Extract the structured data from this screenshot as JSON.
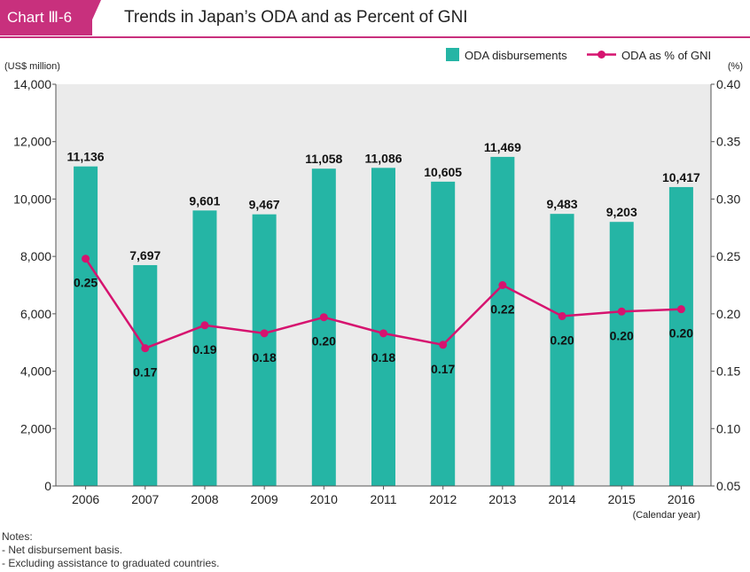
{
  "header": {
    "chart_label": "Chart Ⅲ-6",
    "title": "Trends in Japan’s ODA and as Percent of GNI"
  },
  "notes": {
    "heading": "Notes:",
    "lines": [
      "-  Net disbursement basis.",
      "-  Excluding assistance to graduated countries."
    ]
  },
  "colors": {
    "accent": "#c8307d",
    "bar": "#25b5a5",
    "line": "#d6136f",
    "plot_bg": "#ebebeb"
  },
  "chart_data": {
    "type": "bar",
    "title": "Trends in Japan’s ODA and as Percent of GNI",
    "categories": [
      "2006",
      "2007",
      "2008",
      "2009",
      "2010",
      "2011",
      "2012",
      "2013",
      "2014",
      "2015",
      "2016"
    ],
    "xlabel": "(Calendar year)",
    "ylabel": "(US$ million)",
    "y2label": "(%)",
    "ylim": [
      0,
      14000
    ],
    "y2lim": [
      0.05,
      0.4
    ],
    "y_ticks": [
      "0",
      "2,000",
      "4,000",
      "6,000",
      "8,000",
      "10,000",
      "12,000",
      "14,000"
    ],
    "y2_ticks": [
      "0.05",
      "0.10",
      "0.15",
      "0.20",
      "0.25",
      "0.30",
      "0.35",
      "0.40"
    ],
    "grid": false,
    "legend": "top-right",
    "series": [
      {
        "name": "ODA disbursements",
        "type": "bar",
        "axis": "left",
        "values": [
          11136,
          7697,
          9601,
          9467,
          11058,
          11086,
          10605,
          11469,
          9483,
          9203,
          10417
        ],
        "labels": [
          "11,136",
          "7,697",
          "9,601",
          "9,467",
          "11,058",
          "11,086",
          "10,605",
          "11,469",
          "9,483",
          "9,203",
          "10,417"
        ]
      },
      {
        "name": "ODA as % of GNI",
        "type": "line",
        "axis": "right",
        "values": [
          0.248,
          0.17,
          0.19,
          0.183,
          0.197,
          0.183,
          0.173,
          0.225,
          0.198,
          0.202,
          0.204
        ],
        "labels": [
          "0.25",
          "0.17",
          "0.19",
          "0.18",
          "0.20",
          "0.18",
          "0.17",
          "0.22",
          "0.20",
          "0.20",
          "0.20"
        ]
      }
    ]
  }
}
